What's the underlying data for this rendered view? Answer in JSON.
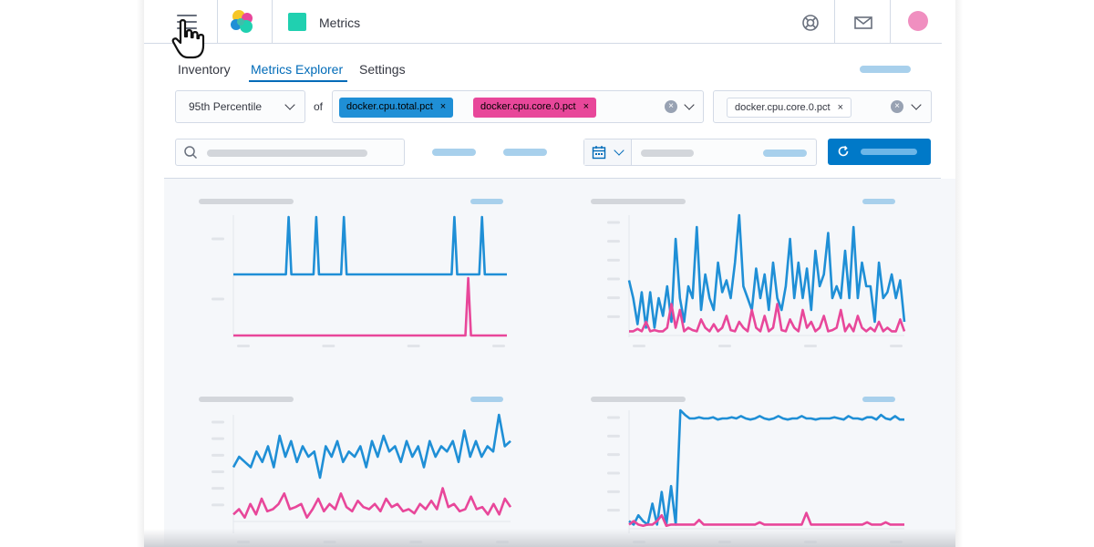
{
  "header": {
    "app_title": "Metrics",
    "icons": [
      "menu-icon",
      "elastic-logo",
      "app-icon",
      "help-icon",
      "mail-icon",
      "avatar"
    ],
    "app_color": "#20d0b0",
    "avatar_color": "#f08fc0"
  },
  "tabs": [
    {
      "label": "Inventory",
      "active": false
    },
    {
      "label": "Metrics Explorer",
      "active": true
    },
    {
      "label": "Settings",
      "active": false
    }
  ],
  "controls": {
    "aggregation": "95th Percentile",
    "of_label": "of",
    "metrics": [
      {
        "label": "docker.cpu.total.pct",
        "color": "#1f8fd6"
      },
      {
        "label": "docker.cpu.core.0.pct",
        "color": "#e8479a"
      }
    ],
    "group_by": "docker.cpu.core.0.pct",
    "remove_symbol": "×",
    "clear_symbol": "×"
  },
  "colors": {
    "accent": "#006bb8",
    "series_blue": "#1f8fd6",
    "series_pink": "#e8479a",
    "button": "#0079c8"
  },
  "chart_data": [
    {
      "type": "line",
      "series": [
        {
          "values": [
            0.6,
            0.6,
            0.6,
            0.6,
            0.6,
            0.6,
            0.6,
            0.6,
            0.6,
            0.6,
            0.6,
            0.6,
            0.6,
            0.6,
            0.6,
            0.6,
            0.6,
            0.6,
            0.6,
            0.6,
            1.6,
            0.6,
            0.6,
            0.6,
            0.6,
            0.6,
            0.6,
            0.6,
            0.6,
            0.6,
            1.6,
            0.6,
            0.6,
            0.6,
            0.6,
            0.6,
            0.6,
            0.6,
            0.6,
            0.6,
            1.6,
            0.6,
            0.6,
            0.6,
            0.6,
            0.6,
            0.6,
            0.6,
            0.6,
            0.6,
            0.6,
            0.6,
            0.6,
            0.6,
            0.6,
            0.6,
            0.6,
            0.6,
            0.6,
            0.6,
            0.6,
            0.6,
            0.6,
            0.6,
            0.6,
            0.6,
            0.6,
            0.6,
            0.6,
            0.6,
            0.6,
            0.6,
            0.6,
            0.6,
            0.6,
            0.6,
            0.6,
            0.6,
            0.6,
            0.6,
            1.6,
            0.6,
            0.6,
            0.6,
            0.6,
            0.6,
            0.6,
            0.6,
            0.6,
            0.6,
            1.6,
            0.6,
            0.6,
            0.6,
            0.6,
            0.6,
            0.6,
            0.6,
            0.6,
            0.6
          ]
        },
        {
          "values": [
            0,
            0,
            0,
            0,
            0,
            0,
            0,
            0,
            0,
            0,
            0,
            0,
            0,
            0,
            0,
            0,
            0,
            0,
            0,
            0,
            0,
            0,
            0,
            0,
            0,
            0,
            0,
            0,
            0,
            0,
            0,
            0,
            0,
            0,
            0,
            0,
            0,
            0,
            0,
            0,
            0,
            0,
            0,
            0,
            0,
            0,
            0,
            0,
            0,
            0,
            0,
            0,
            0,
            0,
            0,
            0,
            0,
            0,
            0,
            0,
            0,
            0,
            0,
            0,
            0,
            0,
            0,
            0,
            0,
            0,
            0,
            0,
            0,
            0,
            0,
            0,
            0,
            0,
            0,
            0,
            0,
            0,
            0,
            0,
            0,
            1.0,
            0,
            0,
            0,
            0,
            0,
            0,
            0,
            0,
            0,
            0,
            0,
            0,
            0,
            0
          ]
        }
      ]
    },
    {
      "type": "line",
      "series": [
        {
          "values": [
            0.45,
            0.3,
            0.08,
            0.35,
            0.05,
            0.35,
            0.05,
            0.3,
            0.15,
            0.4,
            0.1,
            0.8,
            0.3,
            0.1,
            0.4,
            0.3,
            0.9,
            0.2,
            0.5,
            0.3,
            0.2,
            0.6,
            0.35,
            0.45,
            0.3,
            0.6,
            1.0,
            0.4,
            0.3,
            0.2,
            0.55,
            0.3,
            0.5,
            0.2,
            0.6,
            0.3,
            0.2,
            0.4,
            0.8,
            0.3,
            0.6,
            0.3,
            0.55,
            0.2,
            0.7,
            0.4,
            0.5,
            0.85,
            0.3,
            0.4,
            0.3,
            0.7,
            0.3,
            0.9,
            0.3,
            0.6,
            0.4,
            0.4,
            0.1,
            0.6,
            0.3,
            0.35,
            0.5,
            0.3,
            0.45,
            0.1
          ]
        },
        {
          "values": [
            0.02,
            0.02,
            0.04,
            0.02,
            0.1,
            0.02,
            0.03,
            0.02,
            0.02,
            0.05,
            0.25,
            0.05,
            0.2,
            0.02,
            0.05,
            0.03,
            0.02,
            0.12,
            0.05,
            0.02,
            0.08,
            0.02,
            0.05,
            0.15,
            0.03,
            0.02,
            0.1,
            0.05,
            0.02,
            0.2,
            0.05,
            0.02,
            0.15,
            0.02,
            0.05,
            0.25,
            0.03,
            0.02,
            0.12,
            0.05,
            0.02,
            0.2,
            0.05,
            0.1,
            0.02,
            0.05,
            0.15,
            0.02,
            0.03,
            0.05,
            0.2,
            0.02,
            0.08,
            0.02,
            0.15,
            0.05,
            0.02,
            0.05,
            0.02,
            0.1,
            0.02,
            0.05,
            0.02,
            0.02,
            0.12,
            0.02
          ]
        }
      ]
    },
    {
      "type": "line",
      "series": [
        {
          "values": [
            0.5,
            0.6,
            0.55,
            0.5,
            0.65,
            0.55,
            0.7,
            0.5,
            0.8,
            0.6,
            0.75,
            0.55,
            0.7,
            0.6,
            0.65,
            0.4,
            0.7,
            0.6,
            0.75,
            0.55,
            0.65,
            0.6,
            0.7,
            0.5,
            0.75,
            0.6,
            0.8,
            0.65,
            0.7,
            0.55,
            0.75,
            0.6,
            0.7,
            0.5,
            0.75,
            0.6,
            0.7,
            0.65,
            0.75,
            0.55,
            0.85,
            0.6,
            0.75,
            0.6,
            0.7,
            0.65,
            1.0,
            0.7,
            0.75
          ]
        },
        {
          "values": [
            0.05,
            0.1,
            0.02,
            0.15,
            0.05,
            0.2,
            0.08,
            0.1,
            0.15,
            0.25,
            0.1,
            0.12,
            0.15,
            0.02,
            0.1,
            0.2,
            0.08,
            0.15,
            0.1,
            0.25,
            0.12,
            0.08,
            0.18,
            0.12,
            0.1,
            0.15,
            0.08,
            0.2,
            0.12,
            0.15,
            0.08,
            0.1,
            0.06,
            0.15,
            0.1,
            0.18,
            0.1,
            0.3,
            0.12,
            0.15,
            0.08,
            0.1,
            0.22,
            0.1,
            0.12,
            0.05,
            0.15,
            0.05,
            0.2,
            0.12
          ]
        }
      ]
    },
    {
      "type": "line",
      "series": [
        {
          "values": [
            0.05,
            0.02,
            0.1,
            0.05,
            0.02,
            0.2,
            0.02,
            0.3,
            0.02,
            0.35,
            0.02,
            1.0,
            0.96,
            0.93,
            0.93,
            0.94,
            0.93,
            0.93,
            0.94,
            0.92,
            0.93,
            0.93,
            0.94,
            0.93,
            0.95,
            0.93,
            0.92,
            0.93,
            0.95,
            0.93,
            0.92,
            0.93,
            0.95,
            0.93,
            0.92,
            0.93,
            0.93,
            0.95,
            0.93,
            0.93,
            0.92,
            0.93,
            0.93,
            0.93,
            0.94,
            0.93,
            0.92,
            0.95,
            0.93,
            0.93,
            0.92,
            0.94,
            0.94,
            0.92,
            0.96,
            0.93,
            0.92,
            0.95,
            0.92,
            0.92
          ]
        },
        {
          "values": [
            0.02,
            0.05,
            0.02,
            0.01,
            0.02,
            0.02,
            0.05,
            0.1,
            0.01,
            0.02,
            0.02,
            0.02,
            0.02,
            0.02,
            0.02,
            0.06,
            0.02,
            0.02,
            0.02,
            0.02,
            0.02,
            0.02,
            0.02,
            0.02,
            0.02,
            0.02,
            0.02,
            0.02,
            0.04,
            0.02,
            0.02,
            0.02,
            0.02,
            0.02,
            0.02,
            0.02,
            0.02,
            0.02,
            0.12,
            0.02,
            0.02,
            0.02,
            0.02,
            0.02,
            0.02,
            0.02,
            0.02,
            0.02,
            0.02,
            0.02,
            0.02,
            0.04,
            0.02,
            0.02,
            0.02,
            0.04,
            0.02,
            0.02,
            0.02,
            0.02
          ]
        }
      ]
    }
  ]
}
